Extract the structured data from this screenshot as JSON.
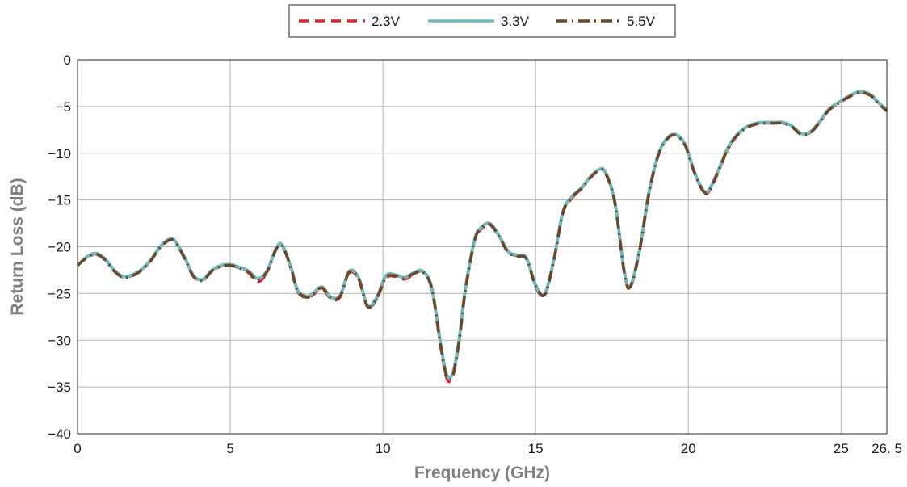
{
  "chart_data": {
    "type": "line",
    "title": "",
    "xlabel": "Frequency (GHz)",
    "ylabel": "Return Loss (dB)",
    "xlim": [
      0,
      26.5
    ],
    "ylim": [
      -40,
      0
    ],
    "xticks": [
      {
        "value": 0,
        "label": "0"
      },
      {
        "value": 5,
        "label": "5"
      },
      {
        "value": 10,
        "label": "10"
      },
      {
        "value": 15,
        "label": "15"
      },
      {
        "value": 20,
        "label": "20"
      },
      {
        "value": 25,
        "label": "25"
      },
      {
        "value": 26.5,
        "label": "26. 5"
      }
    ],
    "yticks": [
      {
        "value": 0,
        "label": "0"
      },
      {
        "value": -5,
        "label": "−5"
      },
      {
        "value": -10,
        "label": "−10"
      },
      {
        "value": -15,
        "label": "−15"
      },
      {
        "value": -20,
        "label": "−20"
      },
      {
        "value": -25,
        "label": "−25"
      },
      {
        "value": -30,
        "label": "−30"
      },
      {
        "value": -35,
        "label": "−35"
      },
      {
        "value": -40,
        "label": "−40"
      }
    ],
    "grid": true,
    "legend_position": "top-center",
    "x": [
      0,
      0.3,
      0.6,
      0.9,
      1.2,
      1.5,
      1.8,
      2.1,
      2.4,
      2.7,
      3.0,
      3.2,
      3.5,
      3.8,
      4.1,
      4.4,
      4.7,
      5.0,
      5.3,
      5.6,
      5.9,
      6.2,
      6.5,
      6.7,
      7.0,
      7.2,
      7.5,
      7.7,
      8.0,
      8.3,
      8.6,
      8.9,
      9.2,
      9.5,
      9.8,
      10.1,
      10.4,
      10.7,
      11.0,
      11.3,
      11.6,
      11.9,
      12.1,
      12.3,
      12.5,
      12.7,
      13.0,
      13.2,
      13.5,
      13.8,
      14.1,
      14.4,
      14.7,
      15.0,
      15.3,
      15.6,
      15.9,
      16.2,
      16.5,
      16.8,
      17.1,
      17.3,
      17.6,
      17.9,
      18.1,
      18.4,
      18.7,
      19.0,
      19.3,
      19.6,
      19.9,
      20.2,
      20.5,
      20.7,
      21.0,
      21.3,
      21.6,
      21.9,
      22.2,
      22.5,
      22.8,
      23.1,
      23.4,
      23.7,
      24.0,
      24.3,
      24.6,
      24.9,
      25.2,
      25.5,
      25.7,
      26.0,
      26.2,
      26.5
    ],
    "series": [
      {
        "name": "2.3V",
        "color": "#e8202a",
        "dash": "dashed",
        "values": [
          -22.0,
          -21.2,
          -20.8,
          -21.4,
          -22.6,
          -23.3,
          -23.1,
          -22.5,
          -21.5,
          -20.1,
          -19.3,
          -19.5,
          -21.2,
          -23.2,
          -23.6,
          -22.6,
          -22.1,
          -22.0,
          -22.3,
          -22.8,
          -23.8,
          -22.8,
          -20.3,
          -19.9,
          -22.5,
          -24.8,
          -25.5,
          -25.2,
          -24.5,
          -25.6,
          -25.4,
          -22.8,
          -23.5,
          -26.5,
          -25.6,
          -23.4,
          -23.2,
          -23.5,
          -23.0,
          -22.7,
          -24.6,
          -31.0,
          -34.2,
          -33.8,
          -30.2,
          -24.8,
          -19.5,
          -18.2,
          -17.7,
          -18.9,
          -20.6,
          -21.0,
          -21.3,
          -24.3,
          -25.2,
          -21.5,
          -16.4,
          -14.8,
          -13.8,
          -12.6,
          -11.8,
          -12.2,
          -15.5,
          -22.8,
          -24.4,
          -20.6,
          -14.6,
          -10.4,
          -8.5,
          -8.1,
          -9.2,
          -12.1,
          -14.2,
          -14.0,
          -11.9,
          -9.6,
          -8.1,
          -7.3,
          -6.9,
          -6.8,
          -6.8,
          -6.8,
          -7.2,
          -8.0,
          -7.8,
          -6.7,
          -5.4,
          -4.7,
          -4.1,
          -3.6,
          -3.5,
          -3.9,
          -4.6,
          -5.5
        ]
      },
      {
        "name": "3.3V",
        "color": "#6cbcbc",
        "dash": "solid",
        "values": [
          -22.0,
          -21.1,
          -20.7,
          -21.3,
          -22.5,
          -23.2,
          -23.0,
          -22.4,
          -21.4,
          -20.0,
          -19.2,
          -19.4,
          -21.1,
          -23.1,
          -23.5,
          -22.5,
          -22.0,
          -21.9,
          -22.2,
          -22.6,
          -23.4,
          -22.6,
          -20.2,
          -19.8,
          -22.3,
          -24.6,
          -25.3,
          -25.0,
          -24.3,
          -25.4,
          -25.2,
          -22.6,
          -23.3,
          -26.3,
          -25.4,
          -23.1,
          -23.0,
          -23.3,
          -22.8,
          -22.6,
          -24.4,
          -30.6,
          -33.8,
          -33.4,
          -29.8,
          -24.5,
          -19.3,
          -18.0,
          -17.5,
          -18.8,
          -20.5,
          -20.9,
          -21.2,
          -24.1,
          -25.0,
          -21.3,
          -16.2,
          -14.6,
          -13.7,
          -12.5,
          -11.7,
          -12.1,
          -15.3,
          -22.6,
          -24.2,
          -20.4,
          -14.4,
          -10.3,
          -8.4,
          -8.0,
          -9.1,
          -12.0,
          -14.0,
          -13.8,
          -11.7,
          -9.4,
          -8.0,
          -7.2,
          -6.8,
          -6.7,
          -6.7,
          -6.7,
          -7.1,
          -7.9,
          -7.7,
          -6.6,
          -5.3,
          -4.6,
          -4.0,
          -3.5,
          -3.4,
          -3.8,
          -4.5,
          -5.4
        ]
      },
      {
        "name": "5.5V",
        "color": "#6e4527",
        "dash": "dash-dot",
        "values": [
          -22.0,
          -21.2,
          -20.8,
          -21.4,
          -22.6,
          -23.3,
          -23.1,
          -22.5,
          -21.5,
          -20.1,
          -19.3,
          -19.5,
          -21.2,
          -23.2,
          -23.6,
          -22.6,
          -22.1,
          -22.0,
          -22.3,
          -22.7,
          -23.6,
          -22.7,
          -20.3,
          -19.9,
          -22.4,
          -24.7,
          -25.4,
          -25.1,
          -24.4,
          -25.5,
          -25.3,
          -22.7,
          -23.4,
          -26.4,
          -25.5,
          -23.3,
          -23.1,
          -23.4,
          -22.9,
          -22.7,
          -24.5,
          -30.8,
          -34.0,
          -33.6,
          -30.0,
          -24.7,
          -19.4,
          -18.1,
          -17.6,
          -18.9,
          -20.6,
          -21.0,
          -21.3,
          -24.2,
          -25.1,
          -21.4,
          -16.3,
          -14.7,
          -13.8,
          -12.6,
          -11.8,
          -12.2,
          -15.4,
          -22.7,
          -24.3,
          -20.5,
          -14.5,
          -10.4,
          -8.5,
          -8.1,
          -9.2,
          -12.1,
          -14.1,
          -13.9,
          -11.8,
          -9.5,
          -8.1,
          -7.3,
          -6.9,
          -6.8,
          -6.8,
          -6.8,
          -7.2,
          -8.0,
          -7.8,
          -6.7,
          -5.4,
          -4.7,
          -4.1,
          -3.6,
          -3.5,
          -3.9,
          -4.6,
          -5.5
        ]
      }
    ]
  }
}
